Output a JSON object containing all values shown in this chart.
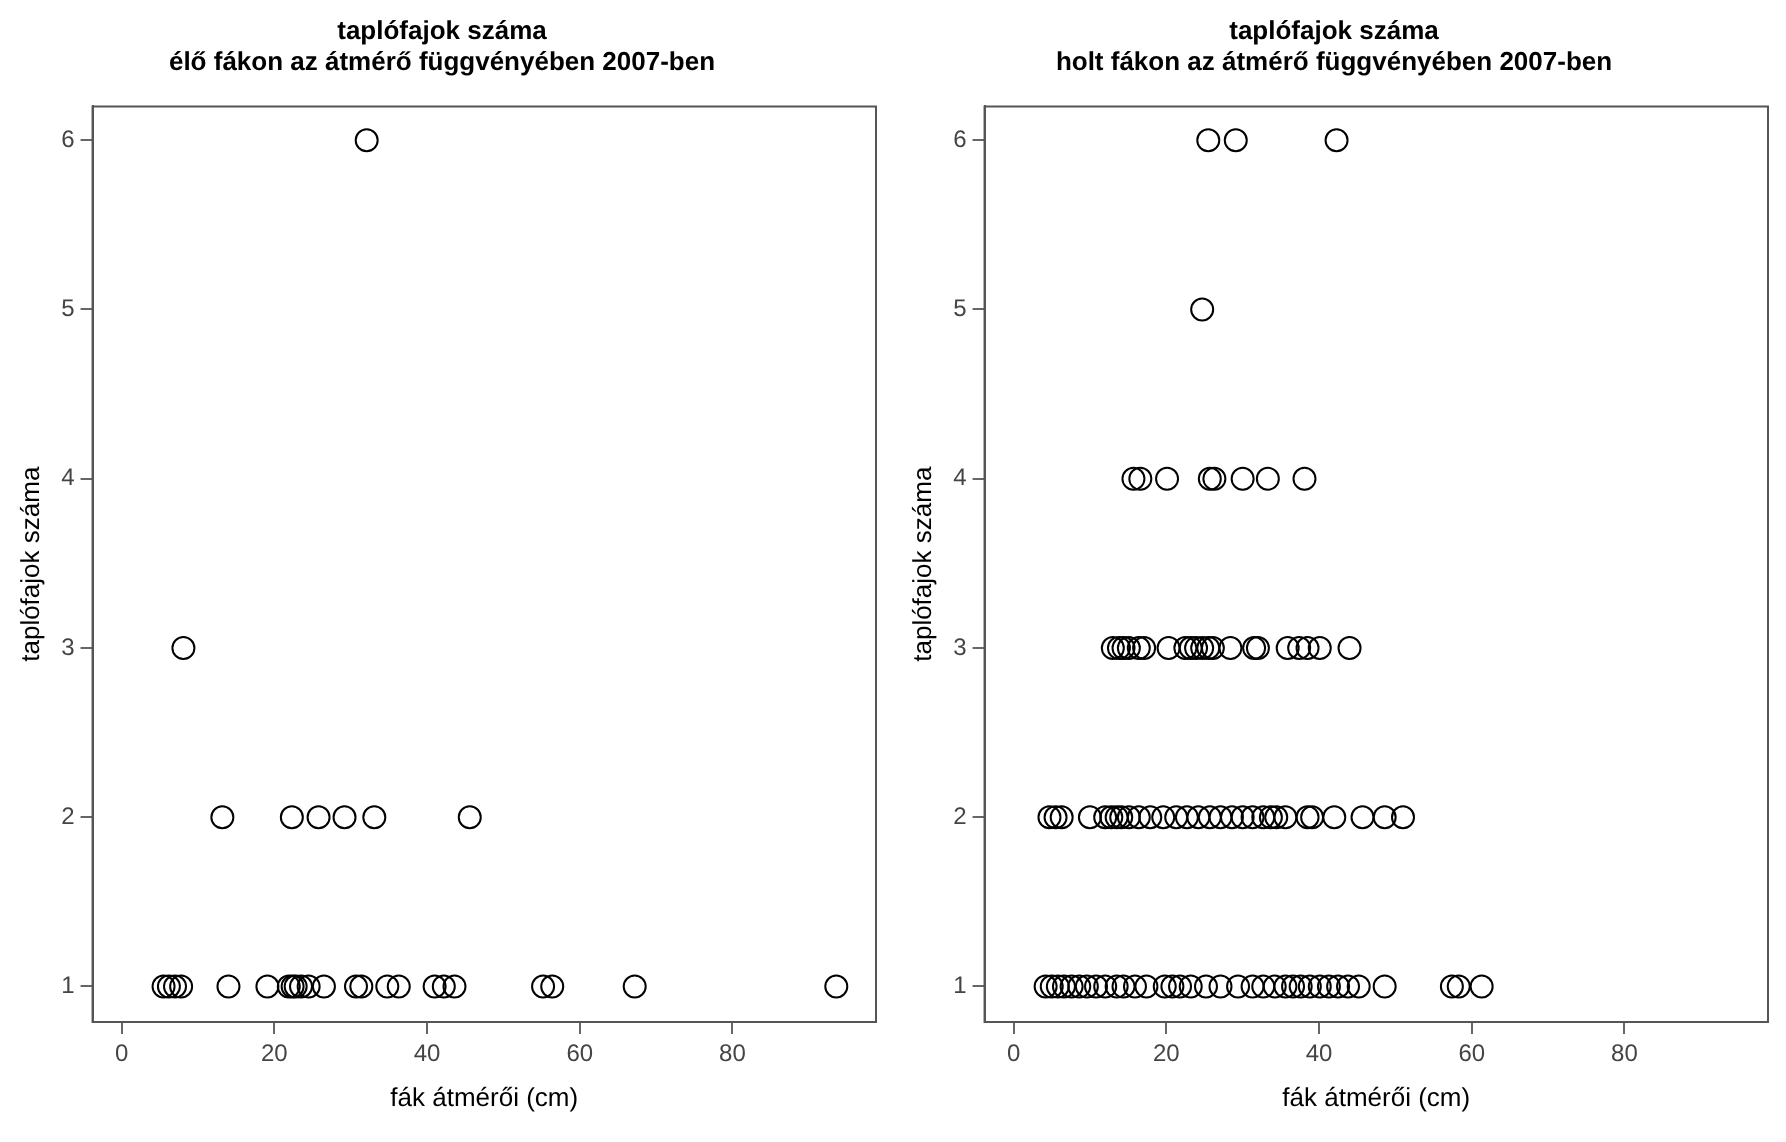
{
  "chart_data": [
    {
      "type": "scatter",
      "title": "taplófajok száma\nélő fákon az átmérő függvényében 2007-ben",
      "xlabel": "fák átmérői (cm)",
      "ylabel": "taplófajok száma",
      "xlim": [
        -3.8,
        98.8
      ],
      "xticks": [
        0,
        20,
        40,
        60,
        80
      ],
      "ylim": [
        0.79,
        6.2
      ],
      "yticks": [
        1,
        2,
        3,
        4,
        5,
        6
      ],
      "grid": false,
      "legend": false,
      "marker": "circle",
      "series": [
        {
          "color": "#000000",
          "x": [
            5.5,
            6.2,
            7,
            7.8,
            14,
            19.1,
            21.9,
            22.4,
            22.8,
            23.5,
            24.5,
            26.5,
            30.7,
            31.4,
            34.8,
            36.3,
            41,
            42.2,
            43.6,
            55.2,
            56.4,
            67.2,
            93.6,
            13.2,
            22.3,
            25.8,
            29.2,
            33.1,
            45.6,
            8.1,
            32.1
          ],
          "values": [
            1,
            1,
            1,
            1,
            1,
            1,
            1,
            1,
            1,
            1,
            1,
            1,
            1,
            1,
            1,
            1,
            1,
            1,
            1,
            1,
            1,
            1,
            1,
            2,
            2,
            2,
            2,
            2,
            2,
            3,
            6
          ]
        }
      ]
    },
    {
      "type": "scatter",
      "title": "taplófajok száma\nholt fákon az átmérő függvényében 2007-ben",
      "xlabel": "fák átmérői (cm)",
      "ylabel": "taplófajok száma",
      "xlim": [
        -3.8,
        98.8
      ],
      "xticks": [
        0,
        20,
        40,
        60,
        80
      ],
      "ylim": [
        0.79,
        6.2
      ],
      "yticks": [
        1,
        2,
        3,
        4,
        5,
        6
      ],
      "grid": false,
      "legend": false,
      "marker": "circle",
      "series": [
        {
          "color": "#000000",
          "x": [
            25.5,
            29.1,
            42.3,
            24.7,
            15.7,
            16.6,
            20.1,
            25.7,
            26.3,
            30,
            33.3,
            38.1,
            13,
            13.8,
            14.4,
            15.1,
            16.4,
            17.1,
            20.3,
            22.5,
            23.2,
            23.9,
            24.7,
            25.5,
            26.1,
            28.4,
            31.5,
            32,
            35.9,
            37.4,
            38.5,
            40.1,
            44,
            4.7,
            5.5,
            6.3,
            10,
            12,
            12.8,
            13.5,
            14.1,
            15.1,
            16.4,
            17.9,
            19.6,
            21.3,
            22.7,
            24.2,
            25.7,
            27.1,
            28.6,
            30,
            31.3,
            32.7,
            33.7,
            34.4,
            35.6,
            38.5,
            39.1,
            42,
            45.7,
            48.6,
            51,
            4.2,
            5,
            5.8,
            6.6,
            7.6,
            8.6,
            9.6,
            10.8,
            12,
            13.5,
            14.4,
            15.9,
            17.4,
            19.8,
            20.8,
            21.8,
            23.2,
            25.2,
            27.1,
            29.4,
            31.3,
            32.7,
            34.2,
            35.6,
            36.6,
            37.6,
            38.8,
            40.1,
            41.3,
            42.5,
            43.8,
            45.2,
            48.6,
            57.4,
            58.3,
            61.3
          ],
          "values": [
            6,
            6,
            6,
            5,
            4,
            4,
            4,
            4,
            4,
            4,
            4,
            4,
            3,
            3,
            3,
            3,
            3,
            3,
            3,
            3,
            3,
            3,
            3,
            3,
            3,
            3,
            3,
            3,
            3,
            3,
            3,
            3,
            3,
            2,
            2,
            2,
            2,
            2,
            2,
            2,
            2,
            2,
            2,
            2,
            2,
            2,
            2,
            2,
            2,
            2,
            2,
            2,
            2,
            2,
            2,
            2,
            2,
            2,
            2,
            2,
            2,
            2,
            2,
            1,
            1,
            1,
            1,
            1,
            1,
            1,
            1,
            1,
            1,
            1,
            1,
            1,
            1,
            1,
            1,
            1,
            1,
            1,
            1,
            1,
            1,
            1,
            1,
            1,
            1,
            1,
            1,
            1,
            1,
            1,
            1,
            1,
            1,
            1,
            1
          ]
        }
      ]
    }
  ]
}
